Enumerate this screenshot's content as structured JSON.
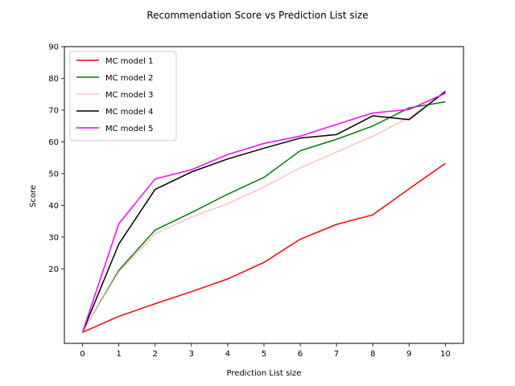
{
  "chart_data": {
    "type": "line",
    "title": "Recommendation Score vs Prediction List size",
    "xlabel": "Prediction List size",
    "ylabel": "Score",
    "x": [
      0,
      1,
      2,
      3,
      4,
      5,
      6,
      7,
      8,
      9,
      10
    ],
    "xticks": [
      "0",
      "1",
      "2",
      "3",
      "4",
      "5",
      "6",
      "7",
      "8",
      "9",
      "10"
    ],
    "yticks": [
      20,
      30,
      40,
      50,
      60,
      70,
      80,
      90
    ],
    "xlim": [
      -0.5,
      10.5
    ],
    "ylim": [
      -3.5,
      90
    ],
    "grid": false,
    "legend_position": "top-left",
    "series": [
      {
        "name": "MC model 1",
        "color": "#ff0000",
        "values": [
          0,
          5,
          9,
          12.8,
          16.8,
          22,
          29.3,
          34,
          37,
          45.2,
          53.2
        ]
      },
      {
        "name": "MC model 2",
        "color": "#008000",
        "values": [
          0,
          19.5,
          32.2,
          37.7,
          43.5,
          48.8,
          57.2,
          60.8,
          65,
          70.7,
          72.6
        ]
      },
      {
        "name": "MC model 3",
        "color": "#ffc0cb",
        "values": [
          0,
          19,
          31,
          36.3,
          40.5,
          45.8,
          51.8,
          56.8,
          61.8,
          67.6,
          75.6
        ]
      },
      {
        "name": "MC model 4",
        "color": "#000000",
        "values": [
          0,
          27.8,
          45,
          50.5,
          54.6,
          58,
          61.2,
          62.3,
          68.2,
          67,
          75.9
        ]
      },
      {
        "name": "MC model 5",
        "color": "#ff00ff",
        "values": [
          0,
          34.2,
          48.3,
          51.2,
          56,
          59.5,
          61.8,
          65.5,
          69.1,
          70.2,
          75.3
        ]
      }
    ]
  }
}
